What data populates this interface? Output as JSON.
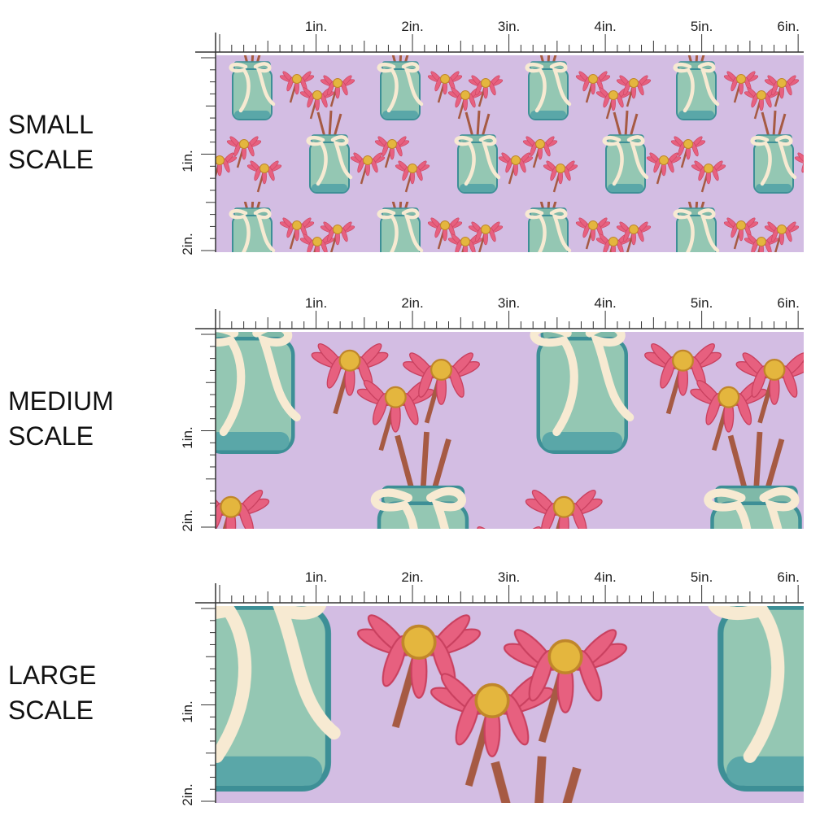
{
  "panels": [
    {
      "label": [
        "SMALL",
        "SCALE"
      ]
    },
    {
      "label": [
        "MEDIUM",
        "SCALE"
      ]
    },
    {
      "label": [
        "LARGE",
        "SCALE"
      ]
    }
  ],
  "ruler": {
    "top": [
      "1in.",
      "2in.",
      "3in.",
      "4in.",
      "5in.",
      "6in."
    ],
    "side": [
      "1in.",
      "2in."
    ]
  }
}
